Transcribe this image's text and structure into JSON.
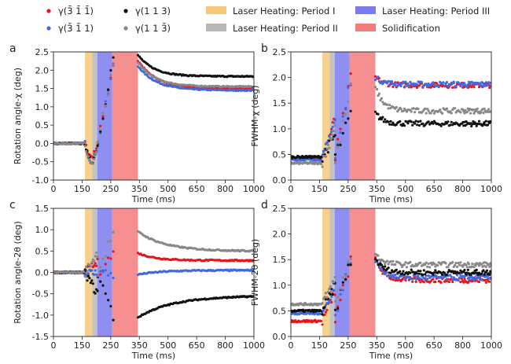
{
  "legend": {
    "series": [
      {
        "key": "s1",
        "label": "γ(3̄ 1̄ 1̄)",
        "color": "#e8151b"
      },
      {
        "key": "s2",
        "label": "γ(3̄ 1̄ 1)",
        "color": "#4169e1"
      },
      {
        "key": "s3",
        "label": "γ(1 1 3)",
        "color": "#111111"
      },
      {
        "key": "s4",
        "label": "γ(1 1 3̄)",
        "color": "#888888"
      }
    ],
    "bands": [
      {
        "key": "p1",
        "label": "Laser Heating: Period I",
        "color": "#f5c87a"
      },
      {
        "key": "p2",
        "label": "Laser Heating: Period II",
        "color": "#b8b8b8"
      },
      {
        "key": "p3",
        "label": "Laser Heating: Period III",
        "color": "#7b7bef"
      },
      {
        "key": "sol",
        "label": "Solidification",
        "color": "#f47c7c"
      }
    ]
  },
  "chart_data": [
    {
      "panel": "a",
      "type": "scatter",
      "ylabel": "Rotation angle-χ (deg)",
      "xlabel": "Time (ms)",
      "ylim": [
        -1.0,
        2.5
      ],
      "yticks": [
        -1.0,
        -0.5,
        0.0,
        0.5,
        1.0,
        1.5,
        2.0,
        2.5
      ],
      "post": {
        "s1": [
          2.25,
          1.5,
          95
        ],
        "s2": [
          2.1,
          1.45,
          95
        ],
        "s3": [
          2.4,
          1.83,
          85
        ],
        "s4": [
          2.2,
          1.55,
          90
        ]
      },
      "dip": {
        "s1": -0.35,
        "s2": -0.45,
        "s3": -0.5,
        "s4": -0.55
      }
    },
    {
      "panel": "b",
      "type": "scatter",
      "ylabel": "FWHM-χ (deg)",
      "xlabel": "Time (ms)",
      "ylim": [
        0.0,
        2.5
      ],
      "yticks": [
        0.0,
        0.5,
        1.0,
        1.5,
        2.0,
        2.5
      ],
      "pre": {
        "s1": 0.42,
        "s2": 0.4,
        "s3": 0.45,
        "s4": 0.33
      },
      "post": {
        "s1": [
          2.0,
          1.85
        ],
        "s2": [
          2.0,
          1.87
        ],
        "s3": [
          1.3,
          1.1
        ],
        "s4": [
          1.8,
          1.35
        ]
      }
    },
    {
      "panel": "c",
      "type": "scatter",
      "ylabel": "Rotation angle-2θ (deg)",
      "xlabel": "Time (ms)",
      "ylim": [
        -1.5,
        1.5
      ],
      "yticks": [
        -1.5,
        -1.0,
        -0.5,
        0.0,
        0.5,
        1.0,
        1.5
      ],
      "post": {
        "s1": [
          0.45,
          0.28,
          90
        ],
        "s2": [
          -0.05,
          0.05,
          120
        ],
        "s3": [
          -1.05,
          -0.55,
          180
        ],
        "s4": [
          0.95,
          0.5,
          140
        ]
      }
    },
    {
      "panel": "d",
      "type": "scatter",
      "ylabel": "FWHM-2θ (deg)",
      "xlabel": "Time (ms)",
      "ylim": [
        0.0,
        2.5
      ],
      "yticks": [
        0.0,
        0.5,
        1.0,
        1.5,
        2.0,
        2.5
      ],
      "pre": {
        "s1": 0.3,
        "s2": 0.45,
        "s3": 0.5,
        "s4": 0.63
      },
      "post": {
        "s1": [
          1.5,
          1.1
        ],
        "s2": [
          1.5,
          1.15
        ],
        "s3": [
          1.5,
          1.25
        ],
        "s4": [
          1.6,
          1.4
        ]
      }
    }
  ],
  "shared": {
    "xtick_labels": [
      "0",
      "150",
      "250",
      "350",
      "500",
      "650",
      "800",
      "1000"
    ],
    "xtick_values": [
      0,
      150,
      250,
      350,
      500,
      650,
      800,
      1000
    ],
    "bands_ms": {
      "p1": [
        160,
        185
      ],
      "p2": [
        185,
        203
      ],
      "p3": [
        203,
        255
      ],
      "sol": [
        255,
        345
      ]
    }
  }
}
